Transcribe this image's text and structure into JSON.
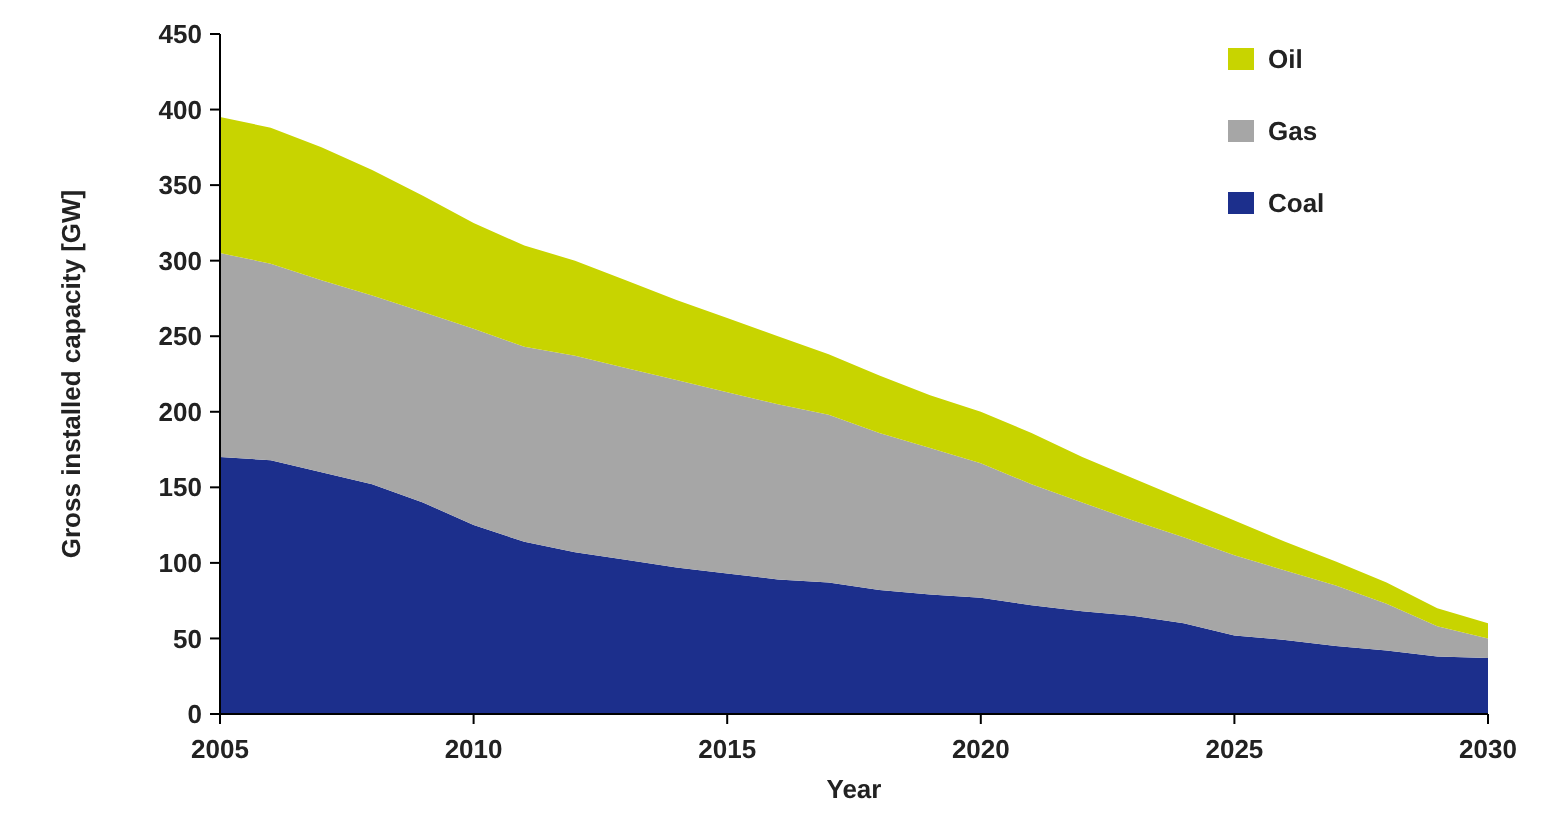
{
  "chart_data": {
    "type": "area",
    "stacked": true,
    "xlabel": "Year",
    "ylabel": "Gross installed capacity [GW]",
    "x": [
      2005,
      2006,
      2007,
      2008,
      2009,
      2010,
      2011,
      2012,
      2013,
      2014,
      2015,
      2016,
      2017,
      2018,
      2019,
      2020,
      2021,
      2022,
      2023,
      2024,
      2025,
      2026,
      2027,
      2028,
      2029,
      2030
    ],
    "series": [
      {
        "name": "Coal",
        "color": "#1c2f8c",
        "values": [
          170,
          168,
          160,
          152,
          140,
          125,
          114,
          107,
          102,
          97,
          93,
          89,
          87,
          82,
          79,
          77,
          72,
          68,
          65,
          60,
          52,
          49,
          45,
          42,
          38,
          37
        ]
      },
      {
        "name": "Gas",
        "color": "#a6a6a6",
        "values": [
          135,
          130,
          127,
          125,
          126,
          130,
          129,
          130,
          127,
          124,
          120,
          116,
          111,
          104,
          97,
          89,
          80,
          72,
          63,
          57,
          53,
          46,
          40,
          31,
          20,
          13
        ]
      },
      {
        "name": "Oil",
        "color": "#c8d400",
        "values": [
          90,
          90,
          88,
          83,
          77,
          70,
          67,
          63,
          58,
          53,
          49,
          45,
          40,
          38,
          35,
          34,
          34,
          30,
          28,
          25,
          23,
          19,
          16,
          14,
          12,
          10
        ]
      }
    ],
    "xlim": [
      2005,
      2030
    ],
    "xticks": [
      2005,
      2010,
      2015,
      2020,
      2025,
      2030
    ],
    "ylim": [
      0,
      450
    ],
    "yticks": [
      0,
      50,
      100,
      150,
      200,
      250,
      300,
      350,
      400,
      450
    ],
    "grid": false,
    "legend": "top right"
  }
}
